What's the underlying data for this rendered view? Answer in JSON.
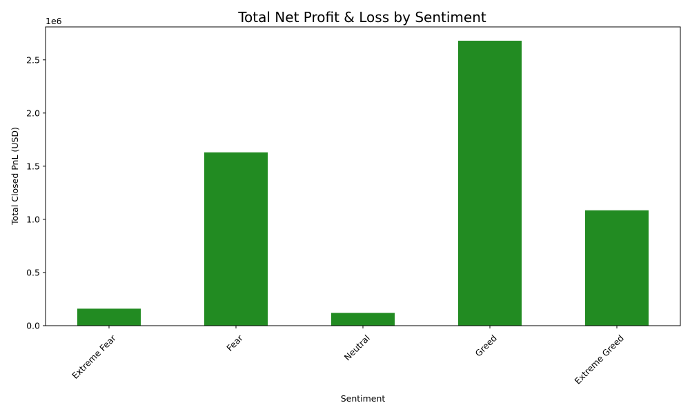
{
  "chart_data": {
    "type": "bar",
    "title": "Total Net Profit & Loss by Sentiment",
    "xlabel": "Sentiment",
    "ylabel": "Total Closed PnL (USD)",
    "y_scale_note": "1e6",
    "categories": [
      "Extreme Fear",
      "Fear",
      "Neutral",
      "Greed",
      "Extreme Greed"
    ],
    "values": [
      0.16,
      1.63,
      0.12,
      2.68,
      1.085
    ],
    "ylim": [
      0,
      2.81
    ],
    "yticks": [
      0.0,
      0.5,
      1.0,
      1.5,
      2.0,
      2.5
    ],
    "ytick_labels": [
      "0.0",
      "0.5",
      "1.0",
      "1.5",
      "2.0",
      "2.5"
    ],
    "bar_color": "#228b22",
    "grid": false,
    "legend": "none"
  }
}
